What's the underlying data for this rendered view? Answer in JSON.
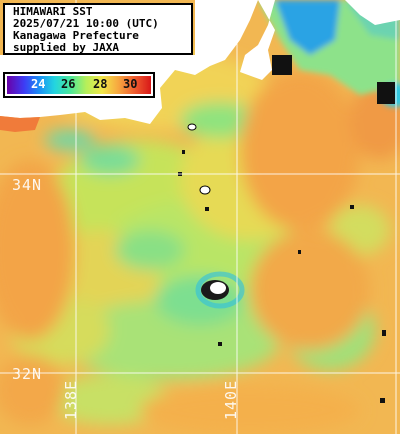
{
  "header": {
    "line1": "HIMAWARI SST",
    "line2": "2025/07/21 10:00 (UTC)",
    "line3": "Kanagawa Prefecture",
    "line4": "supplied by JAXA"
  },
  "colorbar": {
    "ticks": [
      "24",
      "26",
      "28",
      "30"
    ]
  },
  "grid": {
    "lat_labels": [
      "34N",
      "32N"
    ],
    "lon_labels": [
      "138E",
      "140E"
    ]
  },
  "colors": {
    "warm": "#f4b24a",
    "mid": "#e9d84f",
    "cool": "#8ee87a",
    "cold": "#2ea8e0",
    "land": "#ffffff"
  }
}
